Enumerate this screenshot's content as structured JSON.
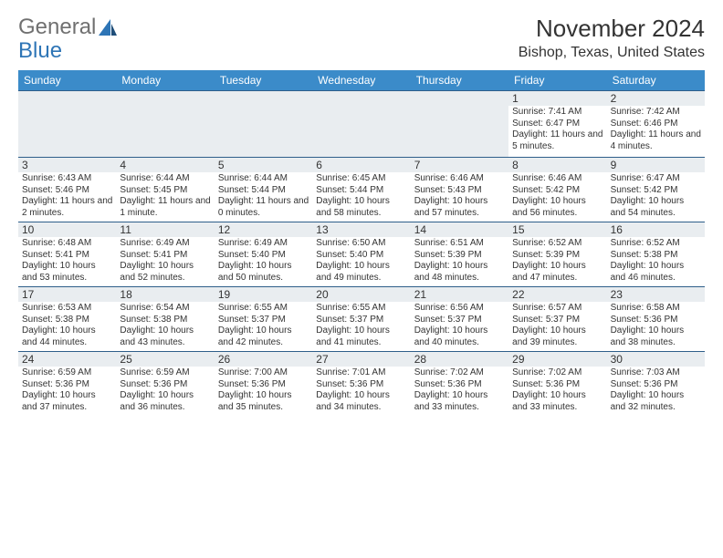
{
  "logo": {
    "text1": "General",
    "text2": "Blue"
  },
  "title": "November 2024",
  "location": "Bishop, Texas, United States",
  "dow": [
    "Sunday",
    "Monday",
    "Tuesday",
    "Wednesday",
    "Thursday",
    "Friday",
    "Saturday"
  ],
  "colors": {
    "header_bg": "#3b8bc9",
    "header_text": "#ffffff",
    "rule": "#2e5e8a",
    "shade": "#e9edf0",
    "text": "#333333",
    "logo_gray": "#707070",
    "logo_blue": "#2e75b6"
  },
  "weeks": [
    [
      {
        "n": "",
        "sunrise": "",
        "sunset": "",
        "daylight": ""
      },
      {
        "n": "",
        "sunrise": "",
        "sunset": "",
        "daylight": ""
      },
      {
        "n": "",
        "sunrise": "",
        "sunset": "",
        "daylight": ""
      },
      {
        "n": "",
        "sunrise": "",
        "sunset": "",
        "daylight": ""
      },
      {
        "n": "",
        "sunrise": "",
        "sunset": "",
        "daylight": ""
      },
      {
        "n": "1",
        "sunrise": "Sunrise: 7:41 AM",
        "sunset": "Sunset: 6:47 PM",
        "daylight": "Daylight: 11 hours and 5 minutes."
      },
      {
        "n": "2",
        "sunrise": "Sunrise: 7:42 AM",
        "sunset": "Sunset: 6:46 PM",
        "daylight": "Daylight: 11 hours and 4 minutes."
      }
    ],
    [
      {
        "n": "3",
        "sunrise": "Sunrise: 6:43 AM",
        "sunset": "Sunset: 5:46 PM",
        "daylight": "Daylight: 11 hours and 2 minutes."
      },
      {
        "n": "4",
        "sunrise": "Sunrise: 6:44 AM",
        "sunset": "Sunset: 5:45 PM",
        "daylight": "Daylight: 11 hours and 1 minute."
      },
      {
        "n": "5",
        "sunrise": "Sunrise: 6:44 AM",
        "sunset": "Sunset: 5:44 PM",
        "daylight": "Daylight: 11 hours and 0 minutes."
      },
      {
        "n": "6",
        "sunrise": "Sunrise: 6:45 AM",
        "sunset": "Sunset: 5:44 PM",
        "daylight": "Daylight: 10 hours and 58 minutes."
      },
      {
        "n": "7",
        "sunrise": "Sunrise: 6:46 AM",
        "sunset": "Sunset: 5:43 PM",
        "daylight": "Daylight: 10 hours and 57 minutes."
      },
      {
        "n": "8",
        "sunrise": "Sunrise: 6:46 AM",
        "sunset": "Sunset: 5:42 PM",
        "daylight": "Daylight: 10 hours and 56 minutes."
      },
      {
        "n": "9",
        "sunrise": "Sunrise: 6:47 AM",
        "sunset": "Sunset: 5:42 PM",
        "daylight": "Daylight: 10 hours and 54 minutes."
      }
    ],
    [
      {
        "n": "10",
        "sunrise": "Sunrise: 6:48 AM",
        "sunset": "Sunset: 5:41 PM",
        "daylight": "Daylight: 10 hours and 53 minutes."
      },
      {
        "n": "11",
        "sunrise": "Sunrise: 6:49 AM",
        "sunset": "Sunset: 5:41 PM",
        "daylight": "Daylight: 10 hours and 52 minutes."
      },
      {
        "n": "12",
        "sunrise": "Sunrise: 6:49 AM",
        "sunset": "Sunset: 5:40 PM",
        "daylight": "Daylight: 10 hours and 50 minutes."
      },
      {
        "n": "13",
        "sunrise": "Sunrise: 6:50 AM",
        "sunset": "Sunset: 5:40 PM",
        "daylight": "Daylight: 10 hours and 49 minutes."
      },
      {
        "n": "14",
        "sunrise": "Sunrise: 6:51 AM",
        "sunset": "Sunset: 5:39 PM",
        "daylight": "Daylight: 10 hours and 48 minutes."
      },
      {
        "n": "15",
        "sunrise": "Sunrise: 6:52 AM",
        "sunset": "Sunset: 5:39 PM",
        "daylight": "Daylight: 10 hours and 47 minutes."
      },
      {
        "n": "16",
        "sunrise": "Sunrise: 6:52 AM",
        "sunset": "Sunset: 5:38 PM",
        "daylight": "Daylight: 10 hours and 46 minutes."
      }
    ],
    [
      {
        "n": "17",
        "sunrise": "Sunrise: 6:53 AM",
        "sunset": "Sunset: 5:38 PM",
        "daylight": "Daylight: 10 hours and 44 minutes."
      },
      {
        "n": "18",
        "sunrise": "Sunrise: 6:54 AM",
        "sunset": "Sunset: 5:38 PM",
        "daylight": "Daylight: 10 hours and 43 minutes."
      },
      {
        "n": "19",
        "sunrise": "Sunrise: 6:55 AM",
        "sunset": "Sunset: 5:37 PM",
        "daylight": "Daylight: 10 hours and 42 minutes."
      },
      {
        "n": "20",
        "sunrise": "Sunrise: 6:55 AM",
        "sunset": "Sunset: 5:37 PM",
        "daylight": "Daylight: 10 hours and 41 minutes."
      },
      {
        "n": "21",
        "sunrise": "Sunrise: 6:56 AM",
        "sunset": "Sunset: 5:37 PM",
        "daylight": "Daylight: 10 hours and 40 minutes."
      },
      {
        "n": "22",
        "sunrise": "Sunrise: 6:57 AM",
        "sunset": "Sunset: 5:37 PM",
        "daylight": "Daylight: 10 hours and 39 minutes."
      },
      {
        "n": "23",
        "sunrise": "Sunrise: 6:58 AM",
        "sunset": "Sunset: 5:36 PM",
        "daylight": "Daylight: 10 hours and 38 minutes."
      }
    ],
    [
      {
        "n": "24",
        "sunrise": "Sunrise: 6:59 AM",
        "sunset": "Sunset: 5:36 PM",
        "daylight": "Daylight: 10 hours and 37 minutes."
      },
      {
        "n": "25",
        "sunrise": "Sunrise: 6:59 AM",
        "sunset": "Sunset: 5:36 PM",
        "daylight": "Daylight: 10 hours and 36 minutes."
      },
      {
        "n": "26",
        "sunrise": "Sunrise: 7:00 AM",
        "sunset": "Sunset: 5:36 PM",
        "daylight": "Daylight: 10 hours and 35 minutes."
      },
      {
        "n": "27",
        "sunrise": "Sunrise: 7:01 AM",
        "sunset": "Sunset: 5:36 PM",
        "daylight": "Daylight: 10 hours and 34 minutes."
      },
      {
        "n": "28",
        "sunrise": "Sunrise: 7:02 AM",
        "sunset": "Sunset: 5:36 PM",
        "daylight": "Daylight: 10 hours and 33 minutes."
      },
      {
        "n": "29",
        "sunrise": "Sunrise: 7:02 AM",
        "sunset": "Sunset: 5:36 PM",
        "daylight": "Daylight: 10 hours and 33 minutes."
      },
      {
        "n": "30",
        "sunrise": "Sunrise: 7:03 AM",
        "sunset": "Sunset: 5:36 PM",
        "daylight": "Daylight: 10 hours and 32 minutes."
      }
    ]
  ]
}
